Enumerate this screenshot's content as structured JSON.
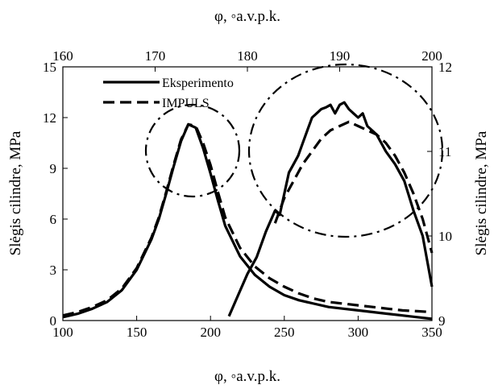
{
  "chart_data": {
    "type": "line",
    "title": "",
    "x_top_label": "φ, ◦a.v.p.k.",
    "x_bottom_label": "φ, ◦a.v.p.k.",
    "y_left_label": "Slėgis cilindre, MPa",
    "y_right_label": "Slėgis cilindre, MPa",
    "x_bottom_range": [
      100,
      350
    ],
    "x_bottom_ticks": [
      "100",
      "150",
      "200",
      "250",
      "300",
      "350"
    ],
    "x_top_range": [
      160,
      200
    ],
    "x_top_ticks": [
      "160",
      "170",
      "180",
      "190",
      "200"
    ],
    "y_left_range": [
      0,
      15
    ],
    "y_left_ticks": [
      "0",
      "3",
      "6",
      "9",
      "12",
      "15"
    ],
    "y_right_range": [
      9,
      12
    ],
    "y_right_ticks": [
      "9",
      "10",
      "11",
      "12"
    ],
    "grid": false,
    "legend_position": "top-left",
    "series": [
      {
        "name": "Eksperimento",
        "axes": "bottom-left",
        "style": "solid",
        "x": [
          100,
          110,
          120,
          130,
          140,
          150,
          160,
          165,
          170,
          175,
          180,
          185,
          190,
          195,
          200,
          205,
          210,
          220,
          230,
          240,
          250,
          260,
          270,
          280,
          290,
          300,
          310,
          320,
          330,
          340,
          350
        ],
        "y": [
          0.2,
          0.4,
          0.7,
          1.1,
          1.8,
          3.0,
          4.8,
          6.0,
          7.5,
          9.1,
          10.6,
          11.6,
          11.4,
          10.2,
          8.7,
          7.1,
          5.6,
          3.8,
          2.7,
          2.0,
          1.5,
          1.2,
          1.0,
          0.8,
          0.7,
          0.6,
          0.5,
          0.4,
          0.3,
          0.2,
          0.1
        ]
      },
      {
        "name": "IMPULS",
        "axes": "bottom-left",
        "style": "dashed",
        "x": [
          100,
          110,
          120,
          130,
          140,
          150,
          160,
          165,
          170,
          175,
          180,
          185,
          190,
          195,
          200,
          205,
          210,
          220,
          230,
          240,
          250,
          260,
          270,
          280,
          290,
          300,
          310,
          320,
          330,
          340,
          350
        ],
        "y": [
          0.3,
          0.5,
          0.8,
          1.2,
          1.9,
          3.1,
          4.9,
          6.1,
          7.6,
          9.2,
          10.7,
          11.6,
          11.5,
          10.5,
          9.2,
          7.6,
          6.1,
          4.3,
          3.2,
          2.5,
          2.0,
          1.6,
          1.3,
          1.1,
          1.0,
          0.9,
          0.8,
          0.7,
          0.6,
          0.55,
          0.5
        ]
      },
      {
        "name": "Eksperimento",
        "axes": "top-right",
        "style": "solid",
        "x": [
          178,
          179,
          180,
          181,
          182,
          183,
          183.5,
          184,
          184.5,
          185,
          185.5,
          186,
          186.5,
          187,
          187.5,
          188,
          188.5,
          189,
          189.5,
          190,
          190.5,
          191,
          191.5,
          192,
          192.5,
          193,
          194,
          195,
          196,
          197,
          198,
          199,
          200
        ],
        "y": [
          9.05,
          9.3,
          9.55,
          9.75,
          10.05,
          10.3,
          10.25,
          10.5,
          10.75,
          10.85,
          10.95,
          11.1,
          11.25,
          11.4,
          11.45,
          11.5,
          11.52,
          11.55,
          11.45,
          11.55,
          11.58,
          11.5,
          11.45,
          11.4,
          11.45,
          11.3,
          11.2,
          11.0,
          10.85,
          10.65,
          10.3,
          10.0,
          9.4
        ]
      },
      {
        "name": "IMPULS",
        "axes": "top-right",
        "style": "dashed",
        "x": [
          183,
          184,
          185,
          186,
          187,
          188,
          189,
          190,
          191,
          192,
          193,
          194,
          195,
          196,
          197,
          198,
          199,
          200
        ],
        "y": [
          10.15,
          10.45,
          10.65,
          10.85,
          11.0,
          11.15,
          11.25,
          11.3,
          11.35,
          11.3,
          11.25,
          11.2,
          11.1,
          10.95,
          10.75,
          10.5,
          10.2,
          9.8
        ]
      }
    ],
    "annotations": [
      "dash-dot circle around the peak near 190 on the bottom axis",
      "dash-dot circle around the peak near 190 on the top axis"
    ]
  }
}
